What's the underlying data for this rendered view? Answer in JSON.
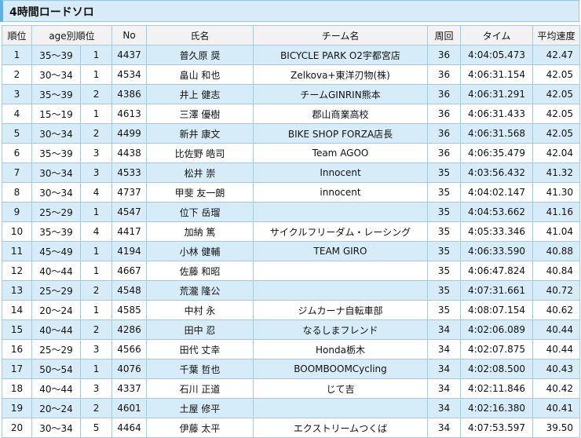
{
  "title": "4時間ロードソロ",
  "headers": [
    "順位",
    "age別順位",
    "",
    "No",
    "氏名",
    "チーム名",
    "周回",
    "タイム",
    "平均速度"
  ],
  "rows": [
    [
      "1",
      "35〜39",
      "1",
      "4437",
      "普久原 奨",
      "BICYCLE PARK O2宇都宮店",
      "36",
      "4:04:05.473",
      "42.47"
    ],
    [
      "2",
      "30〜34",
      "1",
      "4534",
      "畠山 和也",
      "Zelkova+東洋刃物(株)",
      "36",
      "4:06:31.154",
      "42.05"
    ],
    [
      "3",
      "35〜39",
      "2",
      "4386",
      "井上 健志",
      "チームGINRIN熊本",
      "36",
      "4:06:31.291",
      "42.05"
    ],
    [
      "4",
      "15〜19",
      "1",
      "4613",
      "三澤 優樹",
      "郡山商業高校",
      "36",
      "4:06:31.433",
      "42.05"
    ],
    [
      "5",
      "30〜34",
      "2",
      "4499",
      "新井 康文",
      "BIKE SHOP FORZA店長",
      "36",
      "4:06:31.568",
      "42.05"
    ],
    [
      "6",
      "35〜39",
      "3",
      "4438",
      "比佐野 皓司",
      "Team AGOO",
      "36",
      "4:06:35.479",
      "42.04"
    ],
    [
      "7",
      "30〜34",
      "3",
      "4533",
      "松井 崇",
      "Innocent",
      "35",
      "4:03:56.432",
      "41.32"
    ],
    [
      "8",
      "30〜34",
      "4",
      "4737",
      "甲斐 友一朗",
      "innocent",
      "35",
      "4:04:02.147",
      "41.30"
    ],
    [
      "9",
      "25〜29",
      "1",
      "4547",
      "位下 岳瑠",
      "",
      "35",
      "4:04:53.662",
      "41.16"
    ],
    [
      "10",
      "35〜39",
      "4",
      "4417",
      "加納 篤",
      "サイクルフリーダム・レーシング",
      "35",
      "4:05:33.346",
      "41.04"
    ],
    [
      "11",
      "45〜49",
      "1",
      "4194",
      "小林 健輔",
      "TEAM GIRO",
      "35",
      "4:06:33.590",
      "40.88"
    ],
    [
      "12",
      "40〜44",
      "1",
      "4667",
      "佐藤 和昭",
      "",
      "35",
      "4:06:47.824",
      "40.84"
    ],
    [
      "13",
      "25〜29",
      "2",
      "4548",
      "荒瀧 隆公",
      "",
      "35",
      "4:07:31.661",
      "40.72"
    ],
    [
      "14",
      "20〜24",
      "1",
      "4585",
      "中村 永",
      "ジムカーナ自転車部",
      "35",
      "4:08:07.154",
      "40.62"
    ],
    [
      "15",
      "40〜44",
      "2",
      "4286",
      "田中 忍",
      "なるしまフレンド",
      "34",
      "4:02:06.089",
      "40.44"
    ],
    [
      "16",
      "25〜29",
      "3",
      "4566",
      "田代 丈幸",
      "Honda栃木",
      "34",
      "4:02:07.875",
      "40.44"
    ],
    [
      "17",
      "50〜54",
      "1",
      "4076",
      "千葉 哲也",
      "BOOMBOOMCycling",
      "34",
      "4:02:08.500",
      "40.43"
    ],
    [
      "18",
      "40〜44",
      "3",
      "4337",
      "石川 正道",
      "じて吉",
      "34",
      "4:02:11.846",
      "40.42"
    ],
    [
      "19",
      "20〜24",
      "2",
      "4601",
      "土屋 修平",
      "",
      "34",
      "4:02:16.380",
      "40.41"
    ],
    [
      "20",
      "30〜34",
      "5",
      "4464",
      "伊藤 太平",
      "エクストリームつくば",
      "34",
      "4:07:53.597",
      "39.50"
    ]
  ]
}
